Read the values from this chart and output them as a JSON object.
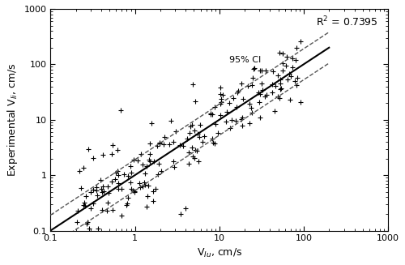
{
  "xlabel": "V$_{Iu}$, cm/s",
  "ylabel": "Experimental V$_{Ii}$, cm/s",
  "r2_text": "R$^2$ = 0.7395",
  "ci_label": "95% CI",
  "xlim": [
    0.1,
    1000
  ],
  "ylim": [
    0.1,
    1000
  ],
  "regression_log_slope": 1.0,
  "regression_log_intercept": 0.0,
  "ci_upper_factor": 1.8,
  "ci_lower_factor": 1.8,
  "marker": "+",
  "marker_size": 18,
  "marker_color": "black",
  "marker_linewidth": 0.8,
  "line_color": "black",
  "line_width": 1.5,
  "ci_color": "#555555",
  "ci_linewidth": 1.0,
  "background_color": "white",
  "seed": 42,
  "n_points": 200
}
